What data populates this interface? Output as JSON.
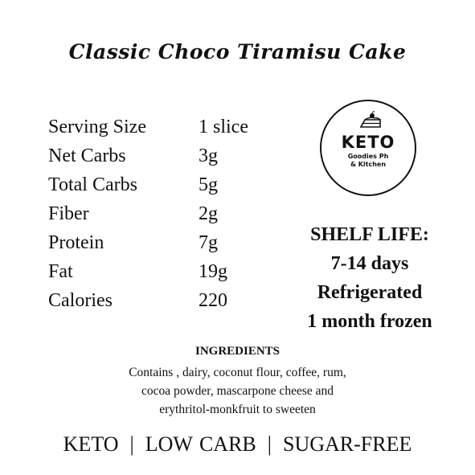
{
  "title": "Classic Choco Tiramisu Cake",
  "nutrition": [
    {
      "label": "Serving Size",
      "value": "1 slice"
    },
    {
      "label": "Net Carbs",
      "value": "3g"
    },
    {
      "label": "Total Carbs",
      "value": "5g"
    },
    {
      "label": "Fiber",
      "value": "2g"
    },
    {
      "label": "Protein",
      "value": "7g"
    },
    {
      "label": "Fat",
      "value": "19g"
    },
    {
      "label": "Calories",
      "value": "220"
    }
  ],
  "logo": {
    "brand": "KETO",
    "line1": "Goodies Ph",
    "line2": "& Kitchen",
    "icon": "cake-slice-icon"
  },
  "shelf_life": {
    "heading": "SHELF LIFE:",
    "lines": [
      "7-14 days",
      "Refrigerated",
      "1 month frozen"
    ]
  },
  "ingredients": {
    "heading": "INGREDIENTS",
    "lines": [
      "Contains , dairy, coconut flour, coffee, rum,",
      "cocoa powder, mascarpone cheese and",
      "erythritol-monkfruit to sweeten"
    ]
  },
  "tags": {
    "items": [
      "KETO",
      "LOW CARB",
      "SUGAR-FREE"
    ],
    "separator": "|"
  }
}
